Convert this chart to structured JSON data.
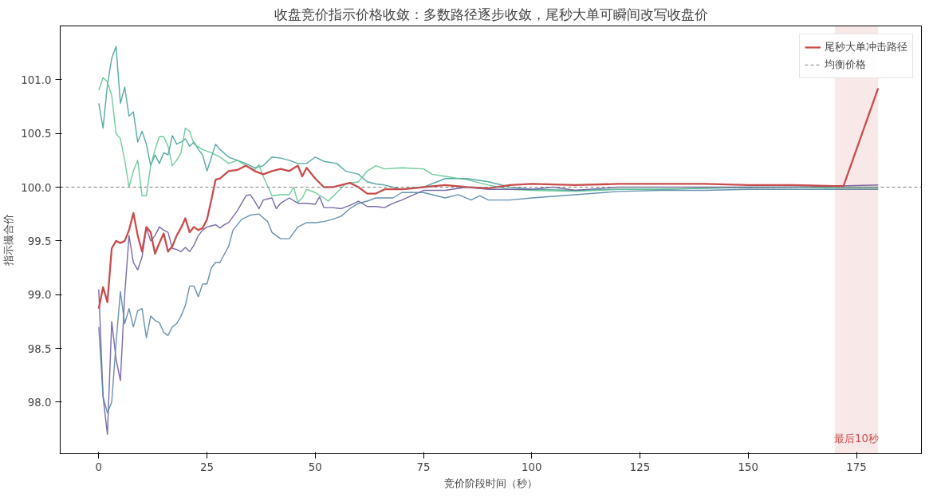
{
  "chart_data": {
    "type": "line",
    "title": "收盘竞价指示价格收敛：多数路径逐步收敛，尾秒大单可瞬间改写收盘价",
    "xlabel": "竞价阶段时间（秒）",
    "ylabel": "指示撮合价",
    "xlim": [
      -8.9,
      190
    ],
    "ylim": [
      97.52,
      101.5
    ],
    "xticks": [
      0,
      25,
      50,
      75,
      100,
      125,
      150,
      175
    ],
    "yticks": [
      {
        "value": 98,
        "label": "98.0"
      },
      {
        "value": 98.5,
        "label": "98.5"
      },
      {
        "value": 99,
        "label": "99.0"
      },
      {
        "value": 99.5,
        "label": "99.5"
      },
      {
        "value": 100,
        "label": "100.0"
      },
      {
        "value": 100.5,
        "label": "100.5"
      },
      {
        "value": 101,
        "label": "101.0"
      }
    ],
    "grid": false,
    "legend": "top right",
    "series": [
      {
        "color": "#45a09a",
        "x": [
          0,
          1,
          2,
          3,
          4,
          5,
          6,
          7,
          8,
          9,
          10,
          11,
          12,
          13,
          14,
          15,
          16,
          17,
          18,
          19,
          20,
          21,
          22,
          23,
          24,
          25,
          27,
          28,
          30,
          32,
          34,
          36,
          38,
          40,
          42,
          44,
          46,
          48,
          50,
          52,
          55,
          57,
          60,
          62,
          64,
          66,
          70,
          75,
          80,
          85,
          90,
          95,
          100,
          110,
          120,
          130,
          140,
          160,
          180
        ],
        "values": [
          100.78,
          100.55,
          100.95,
          101.2,
          101.31,
          100.78,
          100.93,
          100.66,
          100.7,
          100.42,
          100.52,
          100.4,
          100.2,
          100.3,
          100.22,
          100.32,
          100.3,
          100.48,
          100.4,
          100.42,
          100.45,
          100.38,
          100.42,
          100.35,
          100.3,
          100.15,
          100.4,
          100.35,
          100.28,
          100.25,
          100.22,
          100.18,
          100.2,
          100.28,
          100.27,
          100.25,
          100.22,
          100.22,
          100.28,
          100.24,
          100.22,
          100.15,
          100.12,
          100.05,
          100.03,
          100.02,
          99.98,
          100.0,
          100.08,
          100.08,
          100.05,
          100.0,
          99.98,
          99.97,
          99.98,
          99.98,
          99.99,
          100.0,
          100.0
        ]
      },
      {
        "color": "#5ec591",
        "x": [
          0,
          1,
          2,
          3,
          4,
          5,
          6,
          7,
          8,
          9,
          10,
          11,
          12,
          13,
          14,
          15,
          16,
          17,
          18,
          19,
          20,
          21,
          22,
          24,
          26,
          28,
          30,
          32,
          34,
          36,
          37,
          38,
          40,
          42,
          44,
          45,
          46,
          47,
          48,
          50,
          52,
          53,
          55,
          57,
          60,
          62,
          64,
          66,
          70,
          75,
          77,
          80,
          85,
          90,
          95,
          100,
          110,
          120,
          130,
          140,
          150,
          160,
          170,
          180
        ],
        "values": [
          100.9,
          101.02,
          100.98,
          100.85,
          100.5,
          100.45,
          100.25,
          100.0,
          100.15,
          100.25,
          99.92,
          99.92,
          100.2,
          100.35,
          100.47,
          100.47,
          100.38,
          100.2,
          100.25,
          100.32,
          100.55,
          100.52,
          100.4,
          100.35,
          100.32,
          100.28,
          100.22,
          100.25,
          100.2,
          100.16,
          100.21,
          100.1,
          99.92,
          99.93,
          99.93,
          100.0,
          99.86,
          99.9,
          99.98,
          99.95,
          99.9,
          99.87,
          99.95,
          100.03,
          100.05,
          100.15,
          100.2,
          100.17,
          100.18,
          100.17,
          100.12,
          100.1,
          100.07,
          100.02,
          99.98,
          99.97,
          99.96,
          99.98,
          99.98,
          99.99,
          100.0,
          100.0,
          99.99,
          99.99
        ]
      },
      {
        "color": "#6a5a9e",
        "x": [
          0,
          1,
          2,
          3,
          4,
          5,
          6,
          7,
          8,
          9,
          10,
          11,
          12,
          13,
          14,
          15,
          16,
          17,
          18,
          19,
          20,
          21,
          22,
          23,
          24,
          25,
          26,
          27,
          28,
          29,
          30,
          32,
          34,
          35,
          36,
          37,
          38,
          40,
          41,
          42,
          44,
          46,
          48,
          50,
          51,
          52,
          54,
          56,
          58,
          60,
          62,
          64,
          66,
          68,
          70,
          75,
          80,
          85,
          90,
          100,
          105,
          110,
          120,
          130,
          140,
          150,
          160,
          180
        ],
        "values": [
          99.05,
          98.05,
          97.7,
          98.75,
          98.4,
          98.2,
          99.0,
          99.55,
          99.3,
          99.23,
          99.35,
          99.62,
          99.5,
          99.55,
          99.63,
          99.6,
          99.58,
          99.43,
          99.42,
          99.4,
          99.44,
          99.4,
          99.46,
          99.55,
          99.6,
          99.63,
          99.64,
          99.65,
          99.62,
          99.65,
          99.67,
          99.78,
          99.92,
          99.93,
          99.87,
          99.8,
          99.88,
          99.9,
          99.8,
          99.85,
          99.9,
          99.85,
          99.85,
          99.84,
          99.91,
          99.81,
          99.81,
          99.8,
          99.83,
          99.87,
          99.82,
          99.82,
          99.81,
          99.85,
          99.88,
          99.97,
          99.97,
          100.0,
          99.98,
          99.98,
          100.0,
          99.97,
          100.0,
          100.0,
          100.0,
          100.0,
          100.0,
          100.02
        ]
      },
      {
        "color": "#5786a6",
        "x": [
          0,
          1,
          2,
          3,
          4,
          5,
          6,
          7,
          8,
          9,
          10,
          11,
          12,
          13,
          14,
          15,
          16,
          17,
          18,
          19,
          20,
          21,
          22,
          23,
          24,
          25,
          26,
          27,
          28,
          30,
          31,
          33,
          35,
          37,
          39,
          40,
          42,
          44,
          46,
          48,
          50,
          52,
          54,
          56,
          58,
          60,
          62,
          64,
          66,
          68,
          70,
          72,
          75,
          78,
          80,
          83,
          86,
          88,
          90,
          95,
          100,
          110,
          120,
          130,
          140,
          150,
          160,
          170,
          180
        ],
        "values": [
          98.7,
          98.05,
          97.9,
          98.0,
          98.55,
          99.03,
          98.73,
          98.87,
          98.7,
          98.85,
          98.87,
          98.6,
          98.8,
          98.76,
          98.74,
          98.65,
          98.62,
          98.7,
          98.73,
          98.8,
          98.9,
          99.08,
          99.08,
          98.98,
          99.1,
          99.1,
          99.25,
          99.3,
          99.3,
          99.45,
          99.6,
          99.7,
          99.74,
          99.75,
          99.68,
          99.58,
          99.52,
          99.52,
          99.63,
          99.67,
          99.67,
          99.68,
          99.7,
          99.73,
          99.8,
          99.85,
          99.87,
          99.9,
          99.9,
          99.9,
          99.95,
          99.95,
          99.95,
          99.92,
          99.9,
          99.93,
          99.88,
          99.92,
          99.88,
          99.88,
          99.9,
          99.93,
          99.96,
          99.97,
          99.97,
          99.98,
          99.98,
          99.98,
          99.98
        ]
      },
      {
        "name": "尾秒大单冲击路径",
        "color": "#c94c4c",
        "x": [
          0,
          1,
          2,
          3,
          4,
          5,
          6,
          7,
          8,
          9,
          10,
          11,
          12,
          13,
          14,
          15,
          16,
          17,
          18,
          19,
          20,
          21,
          22,
          23,
          24,
          25,
          26,
          27,
          28,
          30,
          32,
          34,
          36,
          38,
          40,
          42,
          44,
          46,
          47,
          48,
          50,
          52,
          54,
          56,
          58,
          60,
          62,
          64,
          66,
          68,
          70,
          75,
          80,
          85,
          90,
          95,
          100,
          110,
          120,
          130,
          140,
          150,
          160,
          170,
          172,
          180
        ],
        "values": [
          98.87,
          99.07,
          98.93,
          99.43,
          99.5,
          99.48,
          99.5,
          99.6,
          99.76,
          99.55,
          99.4,
          99.63,
          99.58,
          99.38,
          99.48,
          99.57,
          99.4,
          99.45,
          99.55,
          99.62,
          99.71,
          99.58,
          99.63,
          99.6,
          99.62,
          99.7,
          99.88,
          100.07,
          100.08,
          100.15,
          100.16,
          100.2,
          100.15,
          100.12,
          100.15,
          100.17,
          100.15,
          100.2,
          100.1,
          100.18,
          100.08,
          100.0,
          100.0,
          100.02,
          100.04,
          100.0,
          99.94,
          99.94,
          99.98,
          99.98,
          99.98,
          100.0,
          100.02,
          100.0,
          99.99,
          100.02,
          100.03,
          100.02,
          100.03,
          100.03,
          100.03,
          100.02,
          100.02,
          100.01,
          100.01,
          100.92
        ]
      }
    ],
    "ref_lines": [
      {
        "axis": "y",
        "value": 100,
        "label": "均衡价格",
        "color": "#808080",
        "line_style": "dashed"
      }
    ],
    "bands": [
      {
        "axis": "x",
        "from": 170,
        "to": 180,
        "label": "最后10秒",
        "color": "#c94c4c"
      }
    ]
  }
}
